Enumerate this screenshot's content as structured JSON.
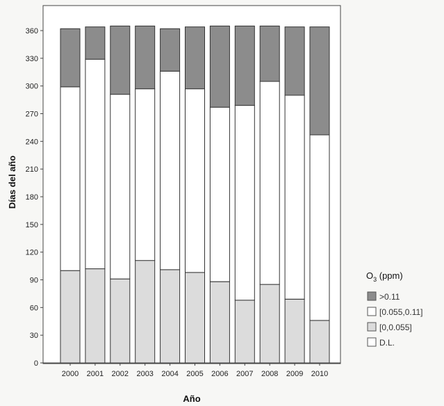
{
  "chart_data": {
    "type": "bar",
    "stacked": true,
    "xlabel": "Año",
    "ylabel": "Días del año",
    "categories": [
      "2000",
      "2001",
      "2002",
      "2003",
      "2004",
      "2005",
      "2006",
      "2007",
      "2008",
      "2009",
      "2010"
    ],
    "ylim": [
      0,
      375
    ],
    "yticks": [
      "0",
      "30",
      "60",
      "90",
      "120",
      "150",
      "180",
      "210",
      "240",
      "270",
      "300",
      "330",
      "360"
    ],
    "series": [
      {
        "name": "D.L.",
        "color": "#ffffff",
        "values": [
          0,
          0,
          0,
          0,
          0,
          0,
          0,
          0,
          0,
          0,
          0
        ]
      },
      {
        "name": "[0,0.055]",
        "color": "#dcdcdc",
        "values": [
          100,
          102,
          91,
          111,
          101,
          98,
          88,
          68,
          85,
          69,
          46
        ]
      },
      {
        "name": "[0.055,0.11]",
        "color": "#ffffff",
        "values": [
          199,
          227,
          200,
          186,
          215,
          199,
          189,
          211,
          220,
          221,
          201
        ]
      },
      {
        "name": ">0.11",
        "color": "#8c8c8c",
        "values": [
          63,
          35,
          74,
          68,
          46,
          67,
          88,
          86,
          60,
          74,
          117
        ]
      }
    ],
    "legend": {
      "title": "O",
      "title_subscript": "3",
      "title_suffix": " (ppm)",
      "placement": "right",
      "entries": [
        ">0.11",
        "[0.055,0.11]",
        "[0,0.055]",
        "D.L."
      ]
    },
    "grid": false
  }
}
